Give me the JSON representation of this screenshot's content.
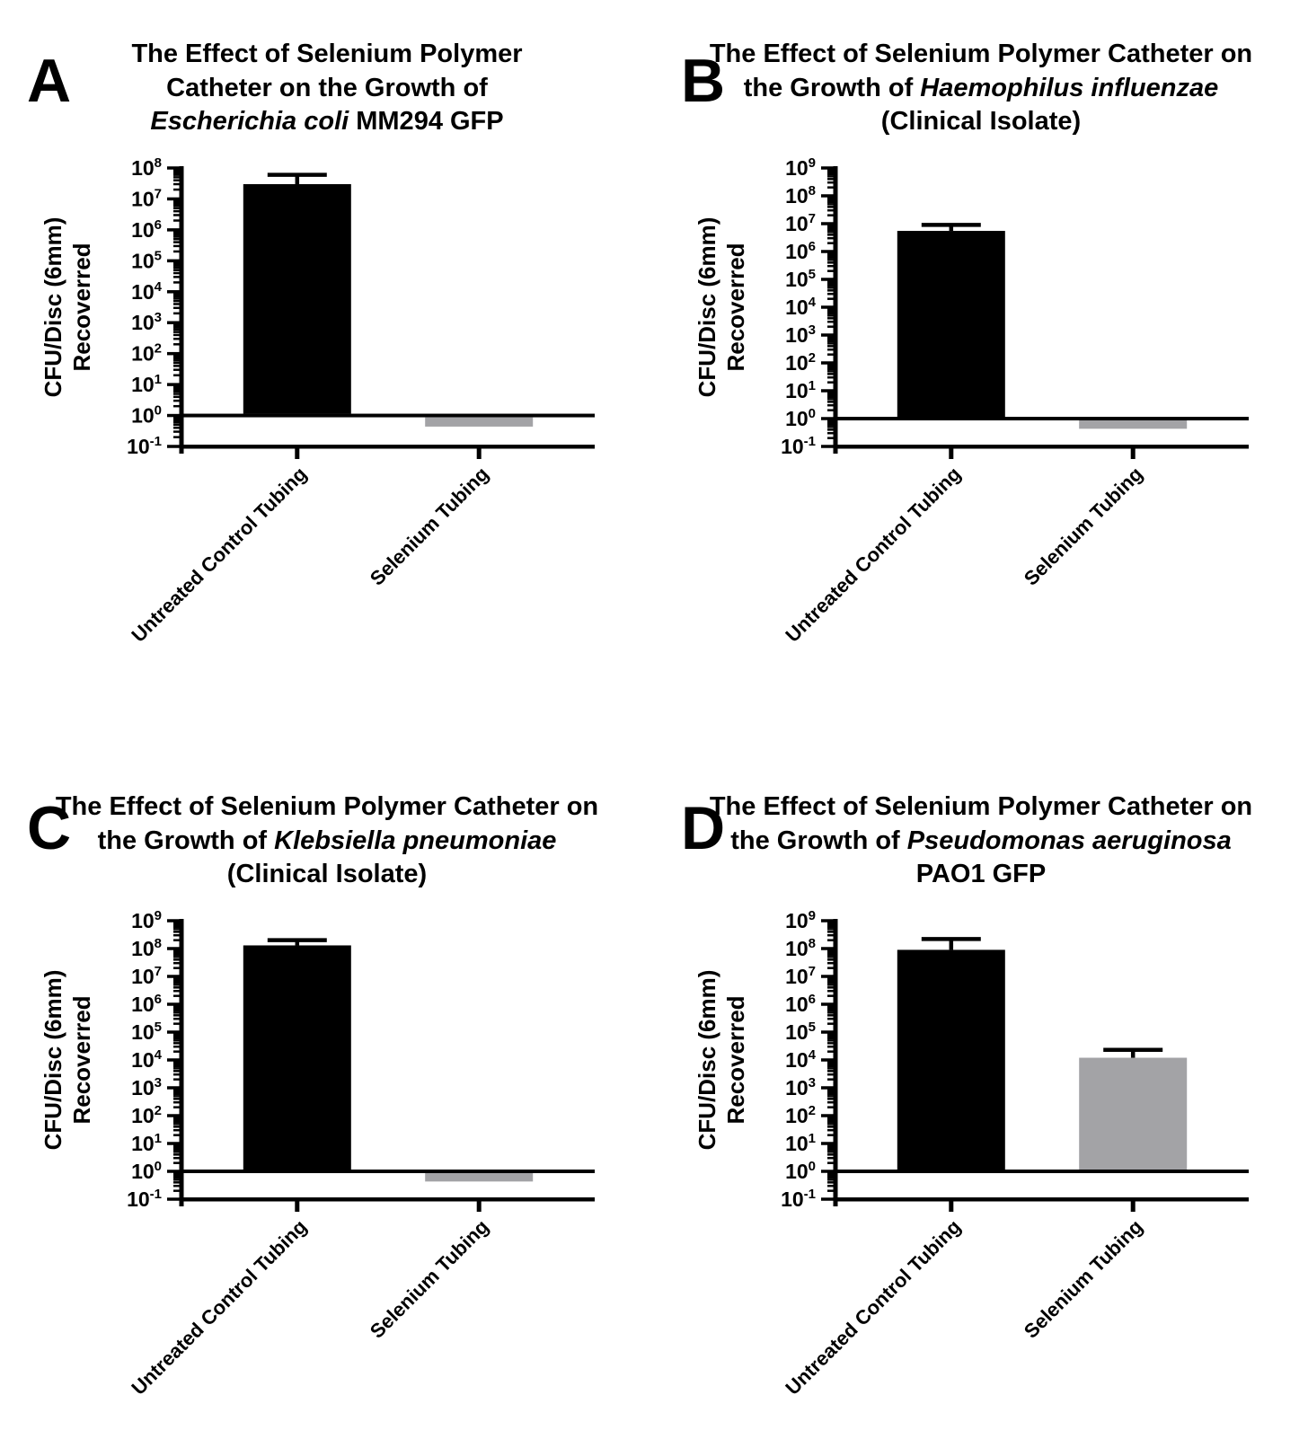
{
  "figure": {
    "background": "#ffffff",
    "axis_color": "#000000",
    "control_bar_color": "#000000",
    "selenium_bar_color": "#a3a3a6"
  },
  "chart_data": [
    {
      "type": "bar",
      "panel_letter": "A",
      "title": "The Effect of Selenium Polymer Catheter on the Growth of Escherichia coli MM294 GFP",
      "title_prefix": "The Effect of Selenium Polymer Catheter on the Growth of ",
      "title_species": "Escherichia coli",
      "title_suffix": " MM294 GFP",
      "ylabel": "CFU/Disc (6mm) Recoverred",
      "ylabel_lines": [
        "CFU/Disc (6mm)",
        "Recoverred"
      ],
      "xlabel": "",
      "y_scale": "log10",
      "ylim_exp": [
        -1,
        8
      ],
      "y_tick_exponents": [
        8,
        7,
        6,
        5,
        4,
        3,
        2,
        1,
        0,
        -1
      ],
      "baseline_exp": 0,
      "categories": [
        "Untreated Control Tubing",
        "Selenium Tubing"
      ],
      "values": [
        30000000.0,
        0.5
      ],
      "error_top": [
        60000000.0,
        null
      ],
      "bar_colors": [
        "#000000",
        "#a3a3a6"
      ],
      "legend": "none",
      "grid": "off"
    },
    {
      "type": "bar",
      "panel_letter": "B",
      "title": "The Effect of Selenium Polymer Catheter on the Growth of Haemophilus influenzae (Clinical Isolate)",
      "title_prefix": "The Effect of Selenium Polymer Catheter on the Growth of ",
      "title_species": "Haemophilus influenzae",
      "title_suffix": " (Clinical Isolate)",
      "ylabel": "CFU/Disc (6mm) Recoverred",
      "ylabel_lines": [
        "CFU/Disc (6mm)",
        "Recoverred"
      ],
      "xlabel": "",
      "y_scale": "log10",
      "ylim_exp": [
        -1,
        9
      ],
      "y_tick_exponents": [
        9,
        8,
        7,
        6,
        5,
        4,
        3,
        2,
        1,
        0,
        -1
      ],
      "baseline_exp": 0,
      "categories": [
        "Untreated Control Tubing",
        "Selenium Tubing"
      ],
      "values": [
        5500000.0,
        0.5
      ],
      "error_top": [
        9000000.0,
        null
      ],
      "bar_colors": [
        "#000000",
        "#a3a3a6"
      ],
      "legend": "none",
      "grid": "off"
    },
    {
      "type": "bar",
      "panel_letter": "C",
      "title": "The Effect of Selenium Polymer Catheter on the Growth of Klebsiella pneumoniae (Clinical Isolate)",
      "title_prefix": "The Effect of Selenium Polymer Catheter on the Growth of ",
      "title_species": "Klebsiella pneumoniae",
      "title_suffix": " (Clinical Isolate)",
      "ylabel": "CFU/Disc (6mm) Recoverred",
      "ylabel_lines": [
        "CFU/Disc (6mm)",
        "Recoverred"
      ],
      "xlabel": "",
      "y_scale": "log10",
      "ylim_exp": [
        -1,
        9
      ],
      "y_tick_exponents": [
        9,
        8,
        7,
        6,
        5,
        4,
        3,
        2,
        1,
        0,
        -1
      ],
      "baseline_exp": 0,
      "categories": [
        "Untreated Control Tubing",
        "Selenium Tubing"
      ],
      "values": [
        130000000.0,
        0.5
      ],
      "error_top": [
        200000000.0,
        null
      ],
      "bar_colors": [
        "#000000",
        "#a3a3a6"
      ],
      "legend": "none",
      "grid": "off"
    },
    {
      "type": "bar",
      "panel_letter": "D",
      "title": "The Effect of Selenium Polymer Catheter on the Growth of Pseudomonas aeruginosa PAO1 GFP",
      "title_prefix": "The Effect of Selenium Polymer Catheter on the Growth of ",
      "title_species": "Pseudomonas aeruginosa",
      "title_suffix": " PAO1 GFP",
      "ylabel": "CFU/Disc (6mm) Recoverred",
      "ylabel_lines": [
        "CFU/Disc (6mm)",
        "Recoverred"
      ],
      "xlabel": "",
      "y_scale": "log10",
      "ylim_exp": [
        -1,
        9
      ],
      "y_tick_exponents": [
        9,
        8,
        7,
        6,
        5,
        4,
        3,
        2,
        1,
        0,
        -1
      ],
      "baseline_exp": 0,
      "categories": [
        "Untreated Control Tubing",
        "Selenium Tubing"
      ],
      "values": [
        90000000.0,
        12000.0
      ],
      "error_top": [
        220000000.0,
        23000.0
      ],
      "bar_colors": [
        "#000000",
        "#a3a3a6"
      ],
      "legend": "none",
      "grid": "off"
    }
  ]
}
